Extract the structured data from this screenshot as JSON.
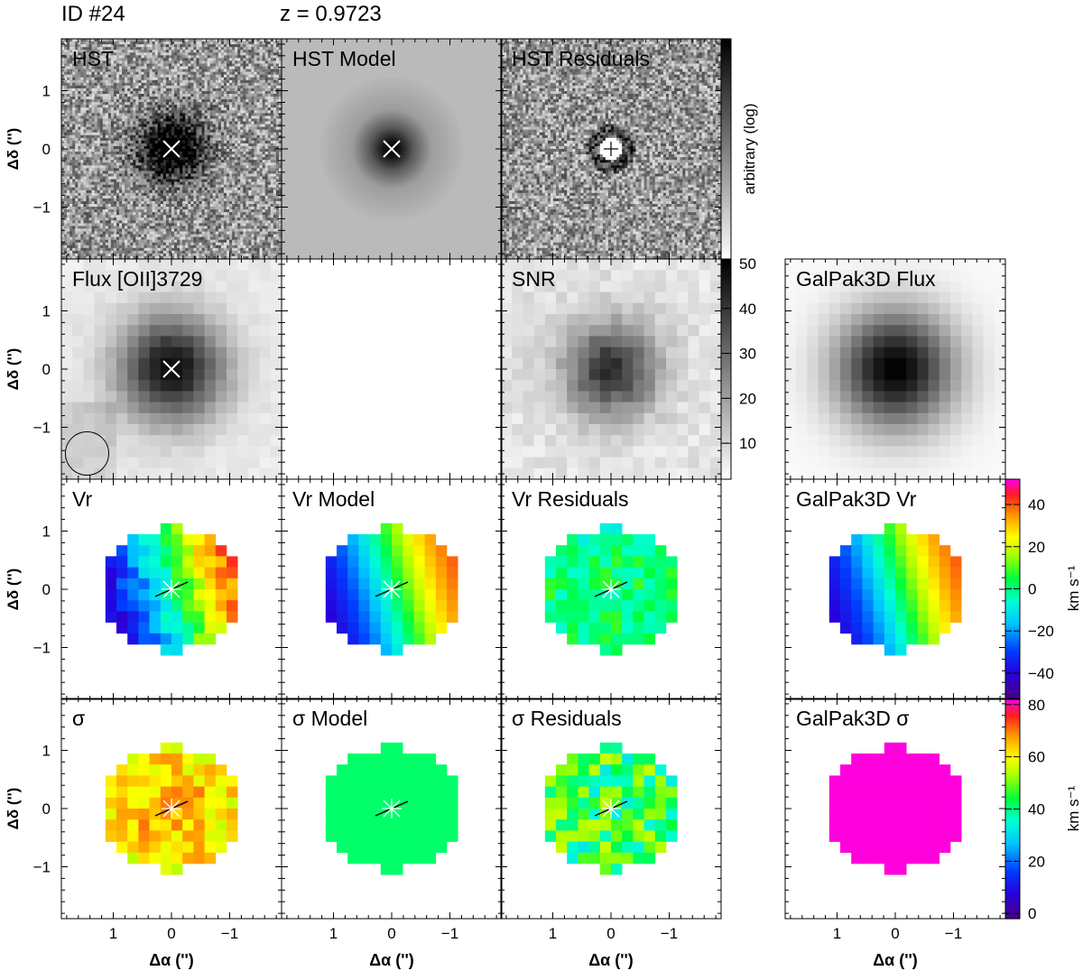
{
  "header": {
    "id_label": "ID #24",
    "z_label": "z = 0.9723"
  },
  "colors": {
    "velocity_map": "rainbow",
    "dispersion_map": "rainbow",
    "flux_map": "greyscale"
  },
  "panels": {
    "row1": [
      "HST",
      "HST Model",
      "HST Residuals"
    ],
    "row2": [
      "Flux [OII]3729",
      "",
      "SNR",
      "GalPak3D Flux"
    ],
    "row3": [
      "Vr",
      "Vr Model",
      "Vr Residuals",
      "GalPak3D Vr"
    ],
    "row4": [
      "σ",
      "σ Model",
      "σ Residuals",
      "GalPak3D σ"
    ]
  },
  "axes": {
    "ylabel": "Δδ ('')",
    "xlabel": "Δα ('')",
    "y_ticks": [
      "1",
      "0",
      "−1"
    ],
    "x_ticks": [
      "1",
      "0",
      "−1"
    ]
  },
  "colorbars": {
    "hst": {
      "label": "arbitrary (log)"
    },
    "snr": {
      "ticks": [
        "50",
        "40",
        "30",
        "20",
        "10"
      ],
      "range": [
        2,
        51
      ]
    },
    "velocity": {
      "label": "km s⁻¹",
      "ticks": [
        "40",
        "20",
        "0",
        "−20",
        "−40"
      ],
      "range": [
        -52,
        52
      ]
    },
    "dispersion": {
      "label": "km s⁻¹",
      "ticks": [
        "80",
        "60",
        "40",
        "20",
        "0"
      ],
      "range": [
        -2,
        82
      ]
    }
  }
}
